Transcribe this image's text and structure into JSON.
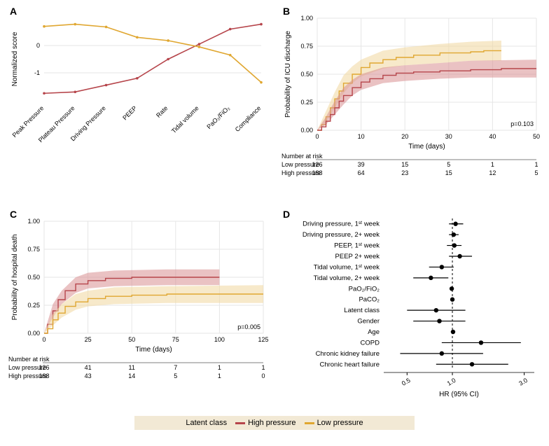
{
  "colors": {
    "high": "#b6454b",
    "low": "#e0a731",
    "high_fill": "#d98f91",
    "low_fill": "#f0d79f",
    "grid": "#e6e6e6",
    "axis": "#555555",
    "legend_bg": "#f2e9d5"
  },
  "legend": {
    "title": "Latent class",
    "items": [
      {
        "label": "High pressure",
        "color_key": "high"
      },
      {
        "label": "Low pressure",
        "color_key": "low"
      }
    ]
  },
  "panelA": {
    "label": "A",
    "type": "line",
    "ylabel": "Normalized score",
    "yticks": [
      -1,
      0
    ],
    "categories": [
      "Peak Pressure",
      "Plateau Pressure",
      "Driving Pressure",
      "PEEP",
      "Rate",
      "Tidal volume",
      "PaO₂/FiO₂",
      "Compliance"
    ],
    "series": [
      {
        "name": "High pressure",
        "color_key": "high",
        "y": [
          -1.75,
          -1.7,
          -1.45,
          -1.2,
          -0.5,
          0.05,
          0.6,
          0.78
        ]
      },
      {
        "name": "Low pressure",
        "color_key": "low",
        "y": [
          0.7,
          0.78,
          0.68,
          0.3,
          0.18,
          -0.05,
          -0.35,
          -1.35
        ]
      }
    ]
  },
  "panelB": {
    "label": "B",
    "type": "survival",
    "ylabel": "Probability of ICU discharge",
    "xlabel": "Time (days)",
    "p": "p=0.103",
    "xlim": [
      0,
      50
    ],
    "xticks": [
      0,
      10,
      20,
      30,
      40,
      50
    ],
    "ylim": [
      0,
      1
    ],
    "yticks": [
      0,
      0.25,
      0.5,
      0.75,
      1.0
    ],
    "series": [
      {
        "name": "Low pressure",
        "color_key": "low",
        "fill_key": "low_fill",
        "line": [
          [
            0,
            0
          ],
          [
            1,
            0.05
          ],
          [
            2,
            0.12
          ],
          [
            3,
            0.2
          ],
          [
            4,
            0.28
          ],
          [
            5,
            0.35
          ],
          [
            6,
            0.42
          ],
          [
            8,
            0.5
          ],
          [
            10,
            0.56
          ],
          [
            12,
            0.6
          ],
          [
            15,
            0.63
          ],
          [
            18,
            0.65
          ],
          [
            22,
            0.67
          ],
          [
            28,
            0.69
          ],
          [
            35,
            0.7
          ],
          [
            38,
            0.71
          ],
          [
            42,
            0.71
          ]
        ],
        "lo": [
          [
            0,
            0
          ],
          [
            2,
            0.07
          ],
          [
            4,
            0.2
          ],
          [
            6,
            0.33
          ],
          [
            8,
            0.42
          ],
          [
            10,
            0.48
          ],
          [
            15,
            0.55
          ],
          [
            20,
            0.58
          ],
          [
            28,
            0.6
          ],
          [
            35,
            0.62
          ],
          [
            42,
            0.62
          ]
        ],
        "hi": [
          [
            0,
            0
          ],
          [
            2,
            0.17
          ],
          [
            4,
            0.34
          ],
          [
            6,
            0.49
          ],
          [
            8,
            0.57
          ],
          [
            10,
            0.63
          ],
          [
            15,
            0.71
          ],
          [
            20,
            0.74
          ],
          [
            28,
            0.77
          ],
          [
            35,
            0.79
          ],
          [
            42,
            0.8
          ]
        ]
      },
      {
        "name": "High pressure",
        "color_key": "high",
        "fill_key": "high_fill",
        "line": [
          [
            0,
            0
          ],
          [
            1,
            0.03
          ],
          [
            2,
            0.08
          ],
          [
            3,
            0.14
          ],
          [
            4,
            0.2
          ],
          [
            5,
            0.26
          ],
          [
            6,
            0.31
          ],
          [
            8,
            0.38
          ],
          [
            10,
            0.43
          ],
          [
            12,
            0.46
          ],
          [
            15,
            0.49
          ],
          [
            18,
            0.51
          ],
          [
            22,
            0.52
          ],
          [
            28,
            0.53
          ],
          [
            35,
            0.54
          ],
          [
            42,
            0.55
          ],
          [
            50,
            0.55
          ]
        ],
        "lo": [
          [
            0,
            0
          ],
          [
            2,
            0.05
          ],
          [
            4,
            0.14
          ],
          [
            6,
            0.23
          ],
          [
            8,
            0.31
          ],
          [
            10,
            0.36
          ],
          [
            15,
            0.42
          ],
          [
            20,
            0.44
          ],
          [
            28,
            0.46
          ],
          [
            35,
            0.47
          ],
          [
            50,
            0.47
          ]
        ],
        "hi": [
          [
            0,
            0
          ],
          [
            2,
            0.12
          ],
          [
            4,
            0.26
          ],
          [
            6,
            0.38
          ],
          [
            8,
            0.45
          ],
          [
            10,
            0.5
          ],
          [
            15,
            0.56
          ],
          [
            20,
            0.58
          ],
          [
            28,
            0.6
          ],
          [
            35,
            0.62
          ],
          [
            50,
            0.63
          ]
        ]
      }
    ],
    "risk_table": {
      "header": "Number at risk",
      "times": [
        0,
        10,
        20,
        30,
        40,
        50
      ],
      "rows": [
        {
          "label": "Low pressure",
          "counts": [
            126,
            39,
            15,
            5,
            1,
            1
          ]
        },
        {
          "label": "High pressure",
          "counts": [
            188,
            64,
            23,
            15,
            12,
            5
          ]
        }
      ]
    }
  },
  "panelC": {
    "label": "C",
    "type": "survival",
    "ylabel": "Probability of hospital death",
    "xlabel": "Time (days)",
    "p": "p=0.005",
    "xlim": [
      0,
      125
    ],
    "xticks": [
      0,
      25,
      50,
      75,
      100,
      125
    ],
    "ylim": [
      0,
      1
    ],
    "yticks": [
      0,
      0.25,
      0.5,
      0.75,
      1.0
    ],
    "series": [
      {
        "name": "High pressure",
        "color_key": "high",
        "fill_key": "high_fill",
        "line": [
          [
            0,
            0
          ],
          [
            2,
            0.08
          ],
          [
            5,
            0.2
          ],
          [
            8,
            0.3
          ],
          [
            12,
            0.38
          ],
          [
            18,
            0.44
          ],
          [
            25,
            0.47
          ],
          [
            35,
            0.49
          ],
          [
            50,
            0.5
          ],
          [
            70,
            0.5
          ],
          [
            100,
            0.5
          ]
        ],
        "lo": [
          [
            0,
            0
          ],
          [
            5,
            0.14
          ],
          [
            10,
            0.26
          ],
          [
            18,
            0.36
          ],
          [
            25,
            0.4
          ],
          [
            40,
            0.42
          ],
          [
            70,
            0.43
          ],
          [
            100,
            0.43
          ]
        ],
        "hi": [
          [
            0,
            0
          ],
          [
            5,
            0.26
          ],
          [
            10,
            0.38
          ],
          [
            18,
            0.5
          ],
          [
            25,
            0.54
          ],
          [
            40,
            0.56
          ],
          [
            70,
            0.57
          ],
          [
            100,
            0.57
          ]
        ]
      },
      {
        "name": "Low pressure",
        "color_key": "low",
        "fill_key": "low_fill",
        "line": [
          [
            0,
            0
          ],
          [
            2,
            0.04
          ],
          [
            5,
            0.12
          ],
          [
            8,
            0.18
          ],
          [
            12,
            0.24
          ],
          [
            18,
            0.28
          ],
          [
            25,
            0.31
          ],
          [
            35,
            0.33
          ],
          [
            50,
            0.34
          ],
          [
            70,
            0.35
          ],
          [
            100,
            0.35
          ],
          [
            125,
            0.35
          ]
        ],
        "lo": [
          [
            0,
            0
          ],
          [
            5,
            0.07
          ],
          [
            10,
            0.14
          ],
          [
            18,
            0.21
          ],
          [
            25,
            0.24
          ],
          [
            40,
            0.26
          ],
          [
            70,
            0.27
          ],
          [
            125,
            0.27
          ]
        ],
        "hi": [
          [
            0,
            0
          ],
          [
            5,
            0.17
          ],
          [
            10,
            0.26
          ],
          [
            18,
            0.35
          ],
          [
            25,
            0.38
          ],
          [
            40,
            0.41
          ],
          [
            70,
            0.42
          ],
          [
            125,
            0.43
          ]
        ]
      }
    ],
    "risk_table": {
      "header": "Number at risk",
      "times": [
        0,
        25,
        50,
        75,
        100,
        125
      ],
      "rows": [
        {
          "label": "Low pressure",
          "counts": [
            126,
            41,
            11,
            7,
            1,
            1
          ]
        },
        {
          "label": "High pressure",
          "counts": [
            188,
            43,
            14,
            5,
            1,
            0
          ]
        }
      ]
    }
  },
  "panelD": {
    "label": "D",
    "type": "forest",
    "xlabel": "HR (95% CI)",
    "xticks_log": [
      0.5,
      1.0,
      3.0
    ],
    "xlim_log": [
      0.35,
      3.5
    ],
    "rows": [
      {
        "label": "Driving pressure, 1ˢᵗ week",
        "hr": 1.05,
        "lo": 0.95,
        "hi": 1.18
      },
      {
        "label": "Driving pressure, 2+ week",
        "hr": 1.02,
        "lo": 0.95,
        "hi": 1.1
      },
      {
        "label": "PEEP, 1ˢᵗ week",
        "hr": 1.03,
        "lo": 0.92,
        "hi": 1.15
      },
      {
        "label": "PEEP 2+ week",
        "hr": 1.12,
        "lo": 0.95,
        "hi": 1.35
      },
      {
        "label": "Tidal volume, 1ˢᵗ week",
        "hr": 0.85,
        "lo": 0.7,
        "hi": 1.02
      },
      {
        "label": "Tidal volume, 2+ week",
        "hr": 0.72,
        "lo": 0.55,
        "hi": 0.94
      },
      {
        "label": "PaO₂/FiO₂",
        "hr": 0.99,
        "lo": 0.96,
        "hi": 1.02
      },
      {
        "label": "PaCO₂",
        "hr": 1.0,
        "lo": 0.97,
        "hi": 1.03
      },
      {
        "label": "Latent class",
        "hr": 0.78,
        "lo": 0.5,
        "hi": 1.22
      },
      {
        "label": "Gender",
        "hr": 0.82,
        "lo": 0.55,
        "hi": 1.22
      },
      {
        "label": "Age",
        "hr": 1.01,
        "lo": 0.99,
        "hi": 1.03
      },
      {
        "label": "COPD",
        "hr": 1.55,
        "lo": 0.85,
        "hi": 2.85
      },
      {
        "label": "Chronic kidney failure",
        "hr": 0.85,
        "lo": 0.45,
        "hi": 1.6
      },
      {
        "label": "Chronic heart failure",
        "hr": 1.35,
        "lo": 0.78,
        "hi": 2.35
      }
    ]
  }
}
